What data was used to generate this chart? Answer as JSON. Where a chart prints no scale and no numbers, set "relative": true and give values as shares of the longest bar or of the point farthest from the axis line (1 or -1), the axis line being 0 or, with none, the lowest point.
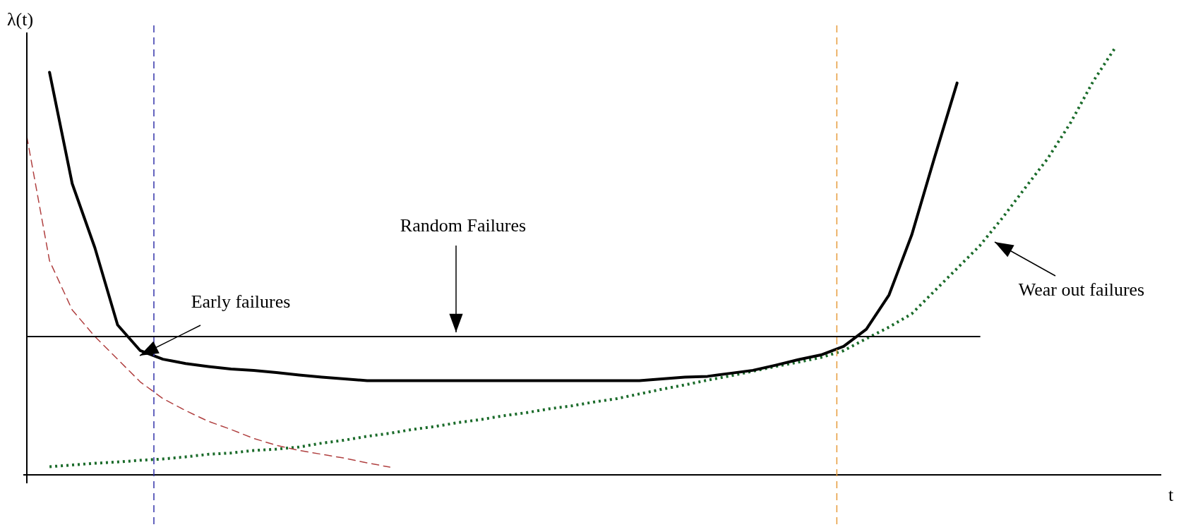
{
  "chart_data": {
    "type": "line",
    "relative": true,
    "xlabel": "t",
    "ylabel": "λ(t)",
    "tick_labels": false,
    "marker": "none",
    "categories": [
      null,
      null,
      null,
      null,
      null,
      null,
      null,
      null,
      null,
      null,
      null,
      null,
      null,
      null,
      null,
      null,
      null,
      null,
      null,
      null,
      null,
      null,
      null,
      null,
      null,
      null,
      null,
      null,
      null,
      null,
      null,
      null,
      null,
      null,
      null,
      null,
      null,
      null,
      null,
      null,
      null,
      null,
      null,
      null,
      null,
      null,
      null,
      null,
      null,
      null,
      null
    ],
    "series": [
      {
        "color": "#000000",
        "line_style": "solid",
        "values": [
          null,
          0.94,
          0.68,
          0.53,
          0.35,
          0.29,
          0.27,
          0.26,
          0.253,
          0.247,
          0.244,
          0.239,
          0.233,
          0.228,
          0.224,
          0.22,
          0.22,
          0.22,
          0.22,
          0.22,
          0.22,
          0.22,
          0.22,
          0.22,
          0.22,
          0.22,
          0.22,
          0.22,
          0.224,
          0.228,
          0.23,
          0.237,
          0.244,
          0.256,
          0.269,
          0.28,
          0.3,
          0.34,
          0.42,
          0.56,
          0.74,
          0.915,
          null,
          null,
          null,
          null,
          null,
          null,
          null,
          null,
          null
        ]
      },
      {
        "color": "#000000",
        "line_style": "solid",
        "values": [
          0.323,
          0.323,
          0.323,
          0.323,
          0.323,
          0.323,
          0.323,
          0.323,
          0.323,
          0.323,
          0.323,
          0.323,
          0.323,
          0.323,
          0.323,
          0.323,
          0.323,
          0.323,
          0.323,
          0.323,
          0.323,
          0.323,
          0.323,
          0.323,
          0.323,
          0.323,
          0.323,
          0.323,
          0.323,
          0.323,
          0.323,
          0.323,
          0.323,
          0.323,
          0.323,
          0.323,
          0.323,
          0.323,
          0.323,
          0.323,
          0.323,
          0.323,
          0.323,
          null,
          null,
          null,
          null,
          null,
          null,
          null,
          null
        ]
      },
      {
        "color": "#b04040",
        "line_style": "dashed",
        "values": [
          0.79,
          0.5,
          0.385,
          0.323,
          0.27,
          0.217,
          0.178,
          0.15,
          0.125,
          0.106,
          0.085,
          0.069,
          0.057,
          0.048,
          0.039,
          0.028,
          0.018,
          null,
          null,
          null,
          null,
          null,
          null,
          null,
          null,
          null,
          null,
          null,
          null,
          null,
          null,
          null,
          null,
          null,
          null,
          null,
          null,
          null,
          null,
          null,
          null,
          null,
          null,
          null,
          null,
          null,
          null,
          null,
          null,
          null,
          null
        ]
      },
      {
        "color": "#1a6b2a",
        "line_style": "dotted",
        "values": [
          null,
          0.019,
          0.023,
          0.027,
          0.03,
          0.034,
          0.037,
          0.042,
          0.048,
          0.051,
          0.057,
          0.06,
          0.065,
          0.074,
          0.081,
          0.09,
          0.097,
          0.106,
          0.113,
          0.122,
          0.129,
          0.138,
          0.145,
          0.154,
          0.161,
          0.17,
          0.178,
          0.189,
          0.2,
          0.21,
          0.221,
          0.231,
          0.242,
          0.253,
          0.263,
          0.274,
          0.29,
          0.318,
          0.345,
          0.376,
          0.429,
          0.482,
          0.535,
          0.6,
          0.67,
          0.739,
          0.822,
          0.919,
          1.0,
          null,
          null
        ]
      }
    ],
    "annotations": [
      "Random Failures",
      "Early failures",
      "Wear out failures"
    ]
  }
}
